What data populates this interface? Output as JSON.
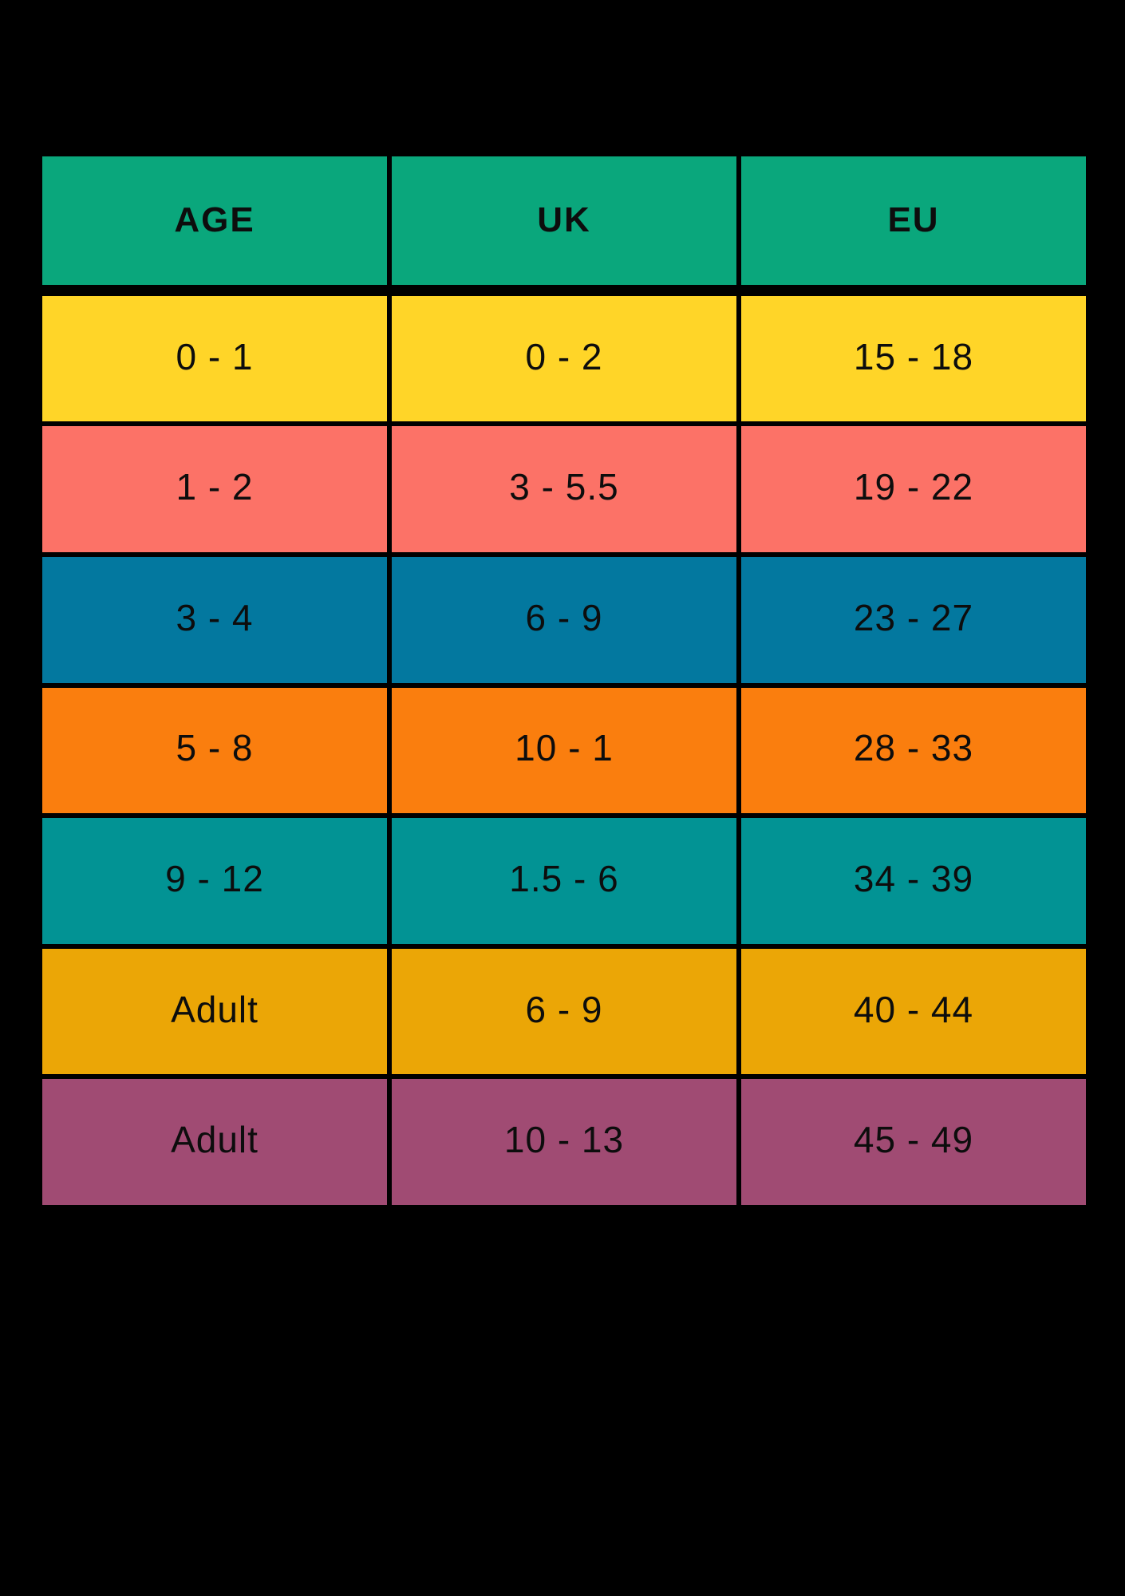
{
  "colors": {
    "background": "#000000",
    "border": "#000000",
    "header_bg": "#0AA77C",
    "text": "#0D0D0D"
  },
  "table": {
    "columns": [
      {
        "key": "age",
        "label": "AGE"
      },
      {
        "key": "uk",
        "label": "UK"
      },
      {
        "key": "eu",
        "label": "EU"
      }
    ],
    "rows": [
      {
        "bg": "#FFD528",
        "age": "0 - 1",
        "uk": "0 - 2",
        "eu": "15 - 18"
      },
      {
        "bg": "#FC7267",
        "age": "1 - 2",
        "uk": "3 - 5.5",
        "eu": "19 - 22"
      },
      {
        "bg": "#03789F",
        "age": "3 - 4",
        "uk": "6 - 9",
        "eu": "23 - 27"
      },
      {
        "bg": "#FA7E0E",
        "age": "5 - 8",
        "uk": "10 - 1",
        "eu": "28 - 33"
      },
      {
        "bg": "#029394",
        "age": "9 - 12",
        "uk": "1.5 - 6",
        "eu": "34 - 39"
      },
      {
        "bg": "#EBA606",
        "age": "Adult",
        "uk": "6 - 9",
        "eu": "40 - 44"
      },
      {
        "bg": "#A04B73",
        "age": "Adult",
        "uk": "10 - 13",
        "eu": "45 - 49"
      }
    ]
  },
  "chart_data": {
    "type": "table",
    "title": "",
    "columns": [
      "AGE",
      "UK",
      "EU"
    ],
    "rows": [
      [
        "0 - 1",
        "0 - 2",
        "15 - 18"
      ],
      [
        "1 - 2",
        "3 - 5.5",
        "19 - 22"
      ],
      [
        "3 - 4",
        "6 - 9",
        "23 - 27"
      ],
      [
        "5 - 8",
        "10 - 1",
        "28 - 33"
      ],
      [
        "9 - 12",
        "1.5 - 6",
        "34 - 39"
      ],
      [
        "Adult",
        "6 - 9",
        "40 - 44"
      ],
      [
        "Adult",
        "10 - 13",
        "45 - 49"
      ]
    ],
    "header_color": "#0AA77C",
    "row_colors": [
      "#FFD528",
      "#FC7267",
      "#03789F",
      "#FA7E0E",
      "#029394",
      "#EBA606",
      "#A04B73"
    ],
    "grid": true,
    "legend_position": "none"
  }
}
